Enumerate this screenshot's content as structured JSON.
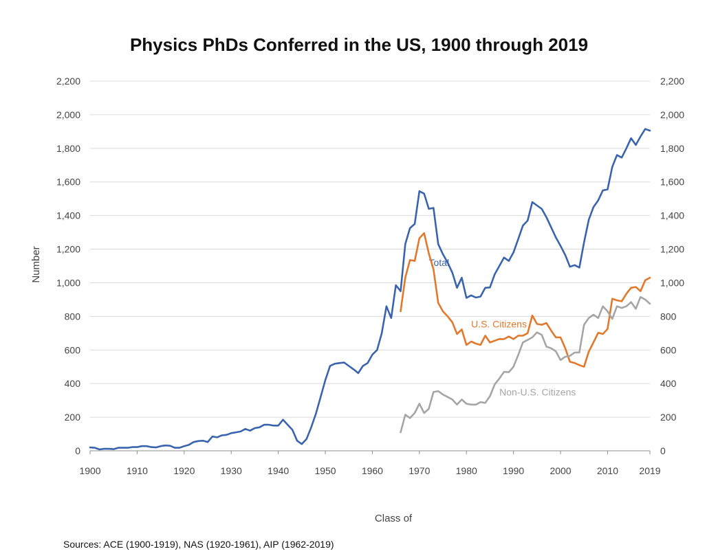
{
  "chart_data": {
    "type": "line",
    "title": "Physics PhDs Conferred in the US, 1900 through 2019",
    "xlabel": "Class of",
    "ylabel": "Number",
    "xlim": [
      1900,
      2019
    ],
    "ylim": [
      0,
      2200
    ],
    "x_ticks": [
      "1900",
      "1910",
      "1920",
      "1930",
      "1940",
      "1950",
      "1960",
      "1970",
      "1980",
      "1990",
      "2000",
      "2010",
      "2019"
    ],
    "y_ticks": [
      "0",
      "200",
      "400",
      "600",
      "800",
      "1,000",
      "1,200",
      "1,400",
      "1,600",
      "1,800",
      "2,000",
      "2,200"
    ],
    "grid": true,
    "source": "Sources: ACE (1900-1919), NAS (1920-1961), AIP (1962-2019)",
    "series": [
      {
        "name": "Total",
        "color": "#3a63ad",
        "label_at": [
          1972,
          1100
        ],
        "points": [
          [
            1900,
            20
          ],
          [
            1901,
            18
          ],
          [
            1902,
            8
          ],
          [
            1903,
            12
          ],
          [
            1904,
            12
          ],
          [
            1905,
            10
          ],
          [
            1906,
            18
          ],
          [
            1907,
            18
          ],
          [
            1908,
            18
          ],
          [
            1909,
            22
          ],
          [
            1910,
            22
          ],
          [
            1911,
            28
          ],
          [
            1912,
            28
          ],
          [
            1913,
            22
          ],
          [
            1914,
            20
          ],
          [
            1915,
            28
          ],
          [
            1916,
            32
          ],
          [
            1917,
            30
          ],
          [
            1918,
            18
          ],
          [
            1919,
            18
          ],
          [
            1920,
            28
          ],
          [
            1921,
            35
          ],
          [
            1922,
            52
          ],
          [
            1923,
            58
          ],
          [
            1924,
            60
          ],
          [
            1925,
            52
          ],
          [
            1926,
            85
          ],
          [
            1927,
            80
          ],
          [
            1928,
            92
          ],
          [
            1929,
            95
          ],
          [
            1930,
            105
          ],
          [
            1931,
            110
          ],
          [
            1932,
            115
          ],
          [
            1933,
            130
          ],
          [
            1934,
            120
          ],
          [
            1935,
            135
          ],
          [
            1936,
            140
          ],
          [
            1937,
            155
          ],
          [
            1938,
            155
          ],
          [
            1939,
            150
          ],
          [
            1940,
            150
          ],
          [
            1941,
            185
          ],
          [
            1942,
            155
          ],
          [
            1943,
            125
          ],
          [
            1944,
            60
          ],
          [
            1945,
            40
          ],
          [
            1946,
            70
          ],
          [
            1947,
            140
          ],
          [
            1948,
            220
          ],
          [
            1949,
            320
          ],
          [
            1950,
            420
          ],
          [
            1951,
            505
          ],
          [
            1952,
            518
          ],
          [
            1953,
            522
          ],
          [
            1954,
            525
          ],
          [
            1955,
            505
          ],
          [
            1956,
            485
          ],
          [
            1957,
            462
          ],
          [
            1958,
            505
          ],
          [
            1959,
            522
          ],
          [
            1960,
            572
          ],
          [
            1961,
            600
          ],
          [
            1962,
            700
          ],
          [
            1963,
            860
          ],
          [
            1964,
            790
          ],
          [
            1965,
            985
          ],
          [
            1966,
            950
          ],
          [
            1967,
            1230
          ],
          [
            1968,
            1325
          ],
          [
            1969,
            1350
          ],
          [
            1970,
            1545
          ],
          [
            1971,
            1530
          ],
          [
            1972,
            1440
          ],
          [
            1973,
            1445
          ],
          [
            1974,
            1230
          ],
          [
            1975,
            1170
          ],
          [
            1976,
            1120
          ],
          [
            1977,
            1060
          ],
          [
            1978,
            970
          ],
          [
            1979,
            1030
          ],
          [
            1980,
            910
          ],
          [
            1981,
            925
          ],
          [
            1982,
            912
          ],
          [
            1983,
            918
          ],
          [
            1984,
            970
          ],
          [
            1985,
            972
          ],
          [
            1986,
            1050
          ],
          [
            1987,
            1100
          ],
          [
            1988,
            1150
          ],
          [
            1989,
            1130
          ],
          [
            1990,
            1180
          ],
          [
            1991,
            1260
          ],
          [
            1992,
            1340
          ],
          [
            1993,
            1370
          ],
          [
            1994,
            1480
          ],
          [
            1995,
            1460
          ],
          [
            1996,
            1440
          ],
          [
            1997,
            1390
          ],
          [
            1998,
            1330
          ],
          [
            1999,
            1270
          ],
          [
            2000,
            1220
          ],
          [
            2001,
            1165
          ],
          [
            2002,
            1095
          ],
          [
            2003,
            1105
          ],
          [
            2004,
            1090
          ],
          [
            2005,
            1240
          ],
          [
            2006,
            1375
          ],
          [
            2007,
            1450
          ],
          [
            2008,
            1490
          ],
          [
            2009,
            1550
          ],
          [
            2010,
            1555
          ],
          [
            2011,
            1690
          ],
          [
            2012,
            1760
          ],
          [
            2013,
            1745
          ],
          [
            2014,
            1800
          ],
          [
            2015,
            1860
          ],
          [
            2016,
            1820
          ],
          [
            2017,
            1870
          ],
          [
            2018,
            1915
          ],
          [
            2019,
            1905
          ]
        ]
      },
      {
        "name": "U.S. Citizens",
        "color": "#e2782b",
        "label_at": [
          1981,
          735
        ],
        "points": [
          [
            1966,
            830
          ],
          [
            1967,
            1030
          ],
          [
            1968,
            1135
          ],
          [
            1969,
            1130
          ],
          [
            1970,
            1265
          ],
          [
            1971,
            1295
          ],
          [
            1972,
            1175
          ],
          [
            1973,
            1080
          ],
          [
            1974,
            880
          ],
          [
            1975,
            830
          ],
          [
            1976,
            800
          ],
          [
            1977,
            765
          ],
          [
            1978,
            695
          ],
          [
            1979,
            722
          ],
          [
            1980,
            630
          ],
          [
            1981,
            650
          ],
          [
            1982,
            638
          ],
          [
            1983,
            630
          ],
          [
            1984,
            685
          ],
          [
            1985,
            645
          ],
          [
            1986,
            655
          ],
          [
            1987,
            665
          ],
          [
            1988,
            665
          ],
          [
            1989,
            680
          ],
          [
            1990,
            665
          ],
          [
            1991,
            685
          ],
          [
            1992,
            685
          ],
          [
            1993,
            700
          ],
          [
            1994,
            805
          ],
          [
            1995,
            755
          ],
          [
            1996,
            750
          ],
          [
            1997,
            760
          ],
          [
            1998,
            715
          ],
          [
            1999,
            675
          ],
          [
            2000,
            675
          ],
          [
            2001,
            610
          ],
          [
            2002,
            530
          ],
          [
            2003,
            522
          ],
          [
            2004,
            510
          ],
          [
            2005,
            500
          ],
          [
            2006,
            590
          ],
          [
            2007,
            645
          ],
          [
            2008,
            702
          ],
          [
            2009,
            695
          ],
          [
            2010,
            725
          ],
          [
            2011,
            905
          ],
          [
            2012,
            895
          ],
          [
            2013,
            890
          ],
          [
            2014,
            935
          ],
          [
            2015,
            970
          ],
          [
            2016,
            975
          ],
          [
            2017,
            950
          ],
          [
            2018,
            1015
          ],
          [
            2019,
            1030
          ]
        ]
      },
      {
        "name": "Non-U.S. Citizens",
        "color": "#a5a5a5",
        "label_at": [
          1987,
          330
        ],
        "points": [
          [
            1966,
            110
          ],
          [
            1967,
            215
          ],
          [
            1968,
            195
          ],
          [
            1969,
            225
          ],
          [
            1970,
            280
          ],
          [
            1971,
            225
          ],
          [
            1972,
            250
          ],
          [
            1973,
            350
          ],
          [
            1974,
            355
          ],
          [
            1975,
            335
          ],
          [
            1976,
            320
          ],
          [
            1977,
            305
          ],
          [
            1978,
            275
          ],
          [
            1979,
            305
          ],
          [
            1980,
            280
          ],
          [
            1981,
            275
          ],
          [
            1982,
            275
          ],
          [
            1983,
            290
          ],
          [
            1984,
            285
          ],
          [
            1985,
            325
          ],
          [
            1986,
            395
          ],
          [
            1987,
            430
          ],
          [
            1988,
            470
          ],
          [
            1989,
            468
          ],
          [
            1990,
            500
          ],
          [
            1991,
            570
          ],
          [
            1992,
            645
          ],
          [
            1993,
            660
          ],
          [
            1994,
            675
          ],
          [
            1995,
            705
          ],
          [
            1996,
            690
          ],
          [
            1997,
            620
          ],
          [
            1998,
            610
          ],
          [
            1999,
            592
          ],
          [
            2000,
            540
          ],
          [
            2001,
            560
          ],
          [
            2002,
            565
          ],
          [
            2003,
            585
          ],
          [
            2004,
            585
          ],
          [
            2005,
            750
          ],
          [
            2006,
            790
          ],
          [
            2007,
            810
          ],
          [
            2008,
            790
          ],
          [
            2009,
            860
          ],
          [
            2010,
            830
          ],
          [
            2011,
            785
          ],
          [
            2012,
            860
          ],
          [
            2013,
            850
          ],
          [
            2014,
            860
          ],
          [
            2015,
            885
          ],
          [
            2016,
            845
          ],
          [
            2017,
            915
          ],
          [
            2018,
            900
          ],
          [
            2019,
            875
          ]
        ]
      }
    ]
  }
}
